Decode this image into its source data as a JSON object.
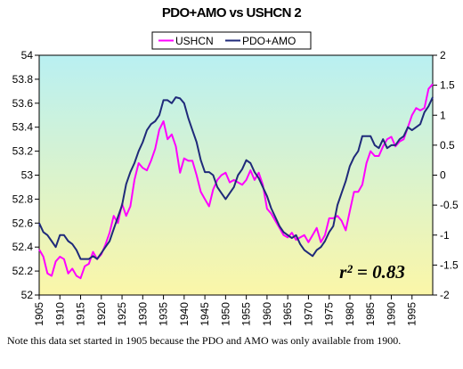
{
  "chart_data": {
    "type": "line",
    "title": "PDO+AMO vs USHCN 2",
    "annotation": "r² = 0.83",
    "legend_position": "top-center",
    "grid": false,
    "plot_background": "gradient light-cyan (top) to light-yellow (bottom)",
    "x_range": [
      1905,
      2000
    ],
    "x_ticks": [
      1905,
      1910,
      1915,
      1920,
      1925,
      1930,
      1935,
      1940,
      1945,
      1950,
      1955,
      1960,
      1965,
      1970,
      1975,
      1980,
      1985,
      1990,
      1995
    ],
    "y_left": {
      "range": [
        52,
        54
      ],
      "ticks": [
        "52",
        "52.2",
        "52.4",
        "52.6",
        "52.8",
        "53",
        "53.2",
        "53.4",
        "53.6",
        "53.8",
        "54"
      ]
    },
    "y_right": {
      "range": [
        -2,
        2
      ],
      "ticks": [
        "-2",
        "-1.5",
        "-1",
        "-0.5",
        "0",
        "0.5",
        "1",
        "1.5",
        "2"
      ]
    },
    "series": [
      {
        "name": "USHCN",
        "axis": "left",
        "color": "#ff00ff",
        "x": [
          1905,
          1906,
          1907,
          1908,
          1909,
          1910,
          1911,
          1912,
          1913,
          1914,
          1915,
          1916,
          1917,
          1918,
          1919,
          1920,
          1921,
          1922,
          1923,
          1924,
          1925,
          1926,
          1927,
          1928,
          1929,
          1930,
          1931,
          1932,
          1933,
          1934,
          1935,
          1936,
          1937,
          1938,
          1939,
          1940,
          1941,
          1942,
          1943,
          1944,
          1945,
          1946,
          1947,
          1948,
          1949,
          1950,
          1951,
          1952,
          1953,
          1954,
          1955,
          1956,
          1957,
          1958,
          1959,
          1960,
          1961,
          1962,
          1963,
          1964,
          1965,
          1966,
          1967,
          1968,
          1969,
          1970,
          1971,
          1972,
          1973,
          1974,
          1975,
          1976,
          1977,
          1978,
          1979,
          1980,
          1981,
          1982,
          1983,
          1984,
          1985,
          1986,
          1987,
          1988,
          1989,
          1990,
          1991,
          1992,
          1993,
          1994,
          1995,
          1996,
          1997,
          1998,
          1999,
          2000
        ],
        "values": [
          52.38,
          52.32,
          52.18,
          52.16,
          52.28,
          52.32,
          52.3,
          52.18,
          52.22,
          52.16,
          52.14,
          52.24,
          52.26,
          52.36,
          52.3,
          52.34,
          52.42,
          52.52,
          52.66,
          52.6,
          52.76,
          52.66,
          52.74,
          52.96,
          53.1,
          53.06,
          53.04,
          53.12,
          53.22,
          53.38,
          53.45,
          53.3,
          53.34,
          53.24,
          53.02,
          53.14,
          53.12,
          53.12,
          53.0,
          52.86,
          52.8,
          52.74,
          52.88,
          52.96,
          53.0,
          53.02,
          52.94,
          52.96,
          52.94,
          52.92,
          52.96,
          53.04,
          52.96,
          53.02,
          52.92,
          52.72,
          52.68,
          52.62,
          52.56,
          52.5,
          52.48,
          52.52,
          52.46,
          52.48,
          52.5,
          52.44,
          52.5,
          52.56,
          52.44,
          52.5,
          52.64,
          52.64,
          52.66,
          52.62,
          52.54,
          52.7,
          52.86,
          52.86,
          52.92,
          53.1,
          53.2,
          53.16,
          53.16,
          53.24,
          53.3,
          53.32,
          53.24,
          53.28,
          53.3,
          53.4,
          53.5,
          53.56,
          53.54,
          53.56,
          53.72,
          53.76
        ]
      },
      {
        "name": "PDO+AMO",
        "axis": "right",
        "color": "#1f2a7a",
        "x": [
          1905,
          1906,
          1907,
          1908,
          1909,
          1910,
          1911,
          1912,
          1913,
          1914,
          1915,
          1916,
          1917,
          1918,
          1919,
          1920,
          1921,
          1922,
          1923,
          1924,
          1925,
          1926,
          1927,
          1928,
          1929,
          1930,
          1931,
          1932,
          1933,
          1934,
          1935,
          1936,
          1937,
          1938,
          1939,
          1940,
          1941,
          1942,
          1943,
          1944,
          1945,
          1946,
          1947,
          1948,
          1949,
          1950,
          1951,
          1952,
          1953,
          1954,
          1955,
          1956,
          1957,
          1958,
          1959,
          1960,
          1961,
          1962,
          1963,
          1964,
          1965,
          1966,
          1967,
          1968,
          1969,
          1970,
          1971,
          1972,
          1973,
          1974,
          1975,
          1976,
          1977,
          1978,
          1979,
          1980,
          1981,
          1982,
          1983,
          1984,
          1985,
          1986,
          1987,
          1988,
          1989,
          1990,
          1991,
          1992,
          1993,
          1994,
          1995,
          1996,
          1997,
          1998,
          1999,
          2000
        ],
        "values": [
          -0.8,
          -0.95,
          -1.0,
          -1.1,
          -1.2,
          -1.0,
          -1.0,
          -1.1,
          -1.15,
          -1.25,
          -1.4,
          -1.4,
          -1.4,
          -1.35,
          -1.4,
          -1.3,
          -1.2,
          -1.1,
          -0.9,
          -0.7,
          -0.5,
          -0.15,
          0.05,
          0.2,
          0.4,
          0.55,
          0.75,
          0.85,
          0.9,
          1.0,
          1.25,
          1.25,
          1.2,
          1.3,
          1.28,
          1.2,
          0.95,
          0.75,
          0.55,
          0.25,
          0.05,
          0.05,
          0.0,
          -0.2,
          -0.3,
          -0.4,
          -0.3,
          -0.2,
          0.0,
          0.1,
          0.25,
          0.2,
          0.05,
          -0.05,
          -0.2,
          -0.35,
          -0.55,
          -0.7,
          -0.85,
          -0.95,
          -1.0,
          -1.05,
          -1.0,
          -1.15,
          -1.25,
          -1.3,
          -1.35,
          -1.25,
          -1.2,
          -1.1,
          -0.95,
          -0.85,
          -0.5,
          -0.3,
          -0.1,
          0.15,
          0.3,
          0.4,
          0.65,
          0.65,
          0.65,
          0.5,
          0.45,
          0.6,
          0.45,
          0.5,
          0.5,
          0.6,
          0.65,
          0.8,
          0.75,
          0.8,
          0.85,
          1.05,
          1.15,
          1.3
        ]
      }
    ]
  },
  "note": "Note this data set started in 1905 because the PDO and AMO was only available from 1900."
}
